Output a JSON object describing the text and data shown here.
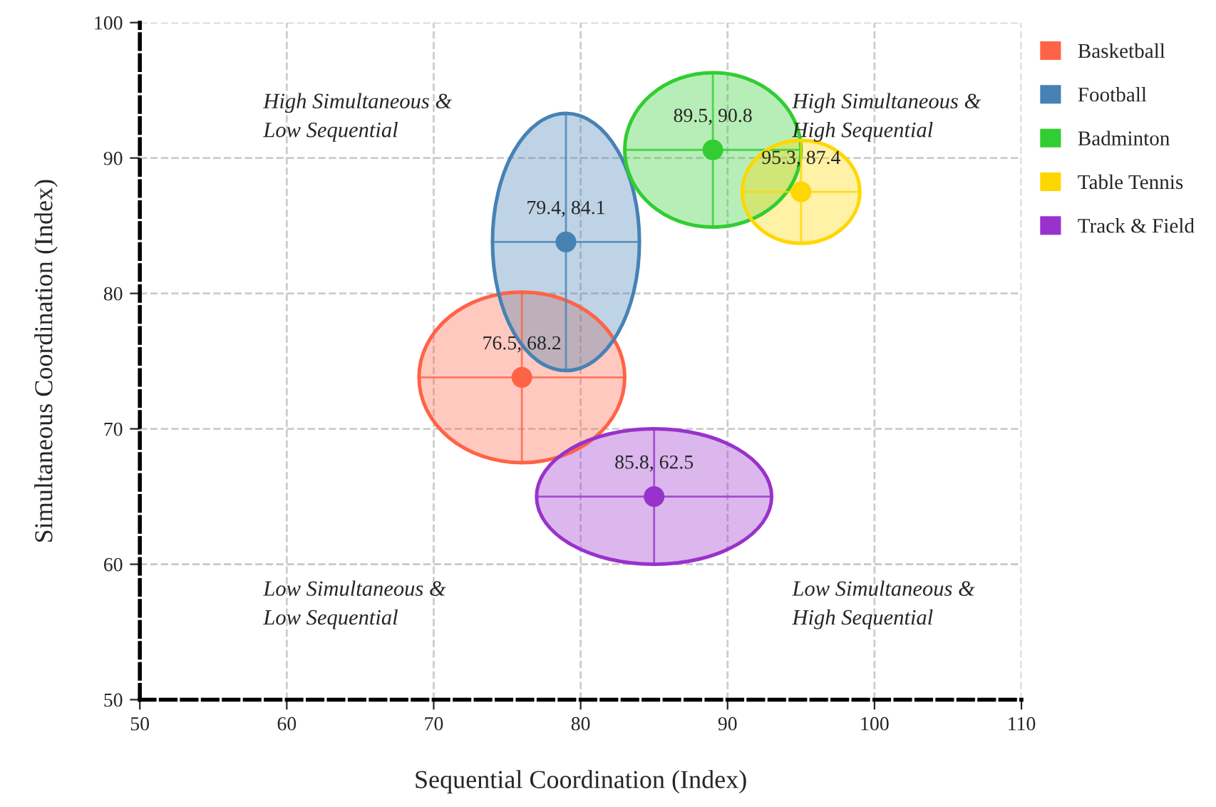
{
  "chart_data": {
    "type": "scatter",
    "xlabel": "Sequential Coordination (Index)",
    "ylabel": "Simultaneous Coordination (Index)",
    "xlim": [
      50,
      110
    ],
    "xticks": [
      50,
      60,
      70,
      80,
      90,
      100,
      110
    ],
    "ylim": [
      50,
      100
    ],
    "yticks": [
      50,
      60,
      70,
      80,
      90,
      100
    ],
    "grid": true,
    "legend": "top right",
    "marker": "circle",
    "annotations": [
      "High Simultaneous &\nLow Sequential",
      "High Simultaneous &\nHigh Sequential",
      "Low Simultaneous &\nLow Sequential",
      "Low Simultaneous &\nHigh Sequential"
    ],
    "series": [
      {
        "name": "Basketball",
        "color": "#ff6347",
        "x": [
          76
        ],
        "values": [
          73.8
        ],
        "xerrors": [
          7
        ],
        "errors": [
          6.3
        ],
        "value_labels": [
          "76.5, 68.2"
        ]
      },
      {
        "name": "Football",
        "color": "#4682b4",
        "x": [
          79
        ],
        "values": [
          83.8
        ],
        "xerrors": [
          5
        ],
        "errors": [
          9.5
        ],
        "value_labels": [
          "79.4, 84.1"
        ]
      },
      {
        "name": "Badminton",
        "color": "#32cd32",
        "x": [
          89
        ],
        "values": [
          90.6
        ],
        "xerrors": [
          6
        ],
        "errors": [
          5.7
        ],
        "value_labels": [
          "89.5, 90.8"
        ]
      },
      {
        "name": "Table Tennis",
        "color": "#ffd700",
        "x": [
          95
        ],
        "values": [
          87.5
        ],
        "xerrors": [
          4
        ],
        "errors": [
          3.8
        ],
        "value_labels": [
          "95.3, 87.4"
        ]
      },
      {
        "name": "Track & Field",
        "color": "#9932cc",
        "x": [
          85
        ],
        "values": [
          65
        ],
        "xerrors": [
          8
        ],
        "errors": [
          5
        ],
        "value_labels": [
          "85.8, 62.5"
        ]
      }
    ]
  }
}
